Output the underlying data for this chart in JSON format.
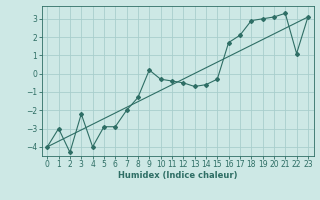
{
  "xlabel": "Humidex (Indice chaleur)",
  "ylabel": "",
  "xlim": [
    -0.5,
    23.5
  ],
  "ylim": [
    -4.5,
    3.7
  ],
  "xticks": [
    0,
    1,
    2,
    3,
    4,
    5,
    6,
    7,
    8,
    9,
    10,
    11,
    12,
    13,
    14,
    15,
    16,
    17,
    18,
    19,
    20,
    21,
    22,
    23
  ],
  "yticks": [
    -4,
    -3,
    -2,
    -1,
    0,
    1,
    2,
    3
  ],
  "bg_color": "#cde8e5",
  "line_color": "#2e6e65",
  "grid_color": "#a8cecc",
  "series1_x": [
    0,
    1,
    2,
    3,
    4,
    5,
    6,
    7,
    8,
    9,
    10,
    11,
    12,
    13,
    14,
    15,
    16,
    17,
    18,
    19,
    20,
    21,
    22,
    23
  ],
  "series1_y": [
    -4.0,
    -3.0,
    -4.3,
    -2.2,
    -4.0,
    -2.9,
    -2.9,
    -2.0,
    -1.3,
    0.2,
    -0.3,
    -0.4,
    -0.5,
    -0.7,
    -0.6,
    -0.3,
    1.7,
    2.1,
    2.9,
    3.0,
    3.1,
    3.3,
    1.1,
    3.1
  ],
  "series2_x": [
    0,
    23
  ],
  "series2_y": [
    -4.0,
    3.1
  ],
  "tick_fontsize": 5.5,
  "xlabel_fontsize": 6.0,
  "marker_size": 2.0,
  "line_width": 0.8
}
